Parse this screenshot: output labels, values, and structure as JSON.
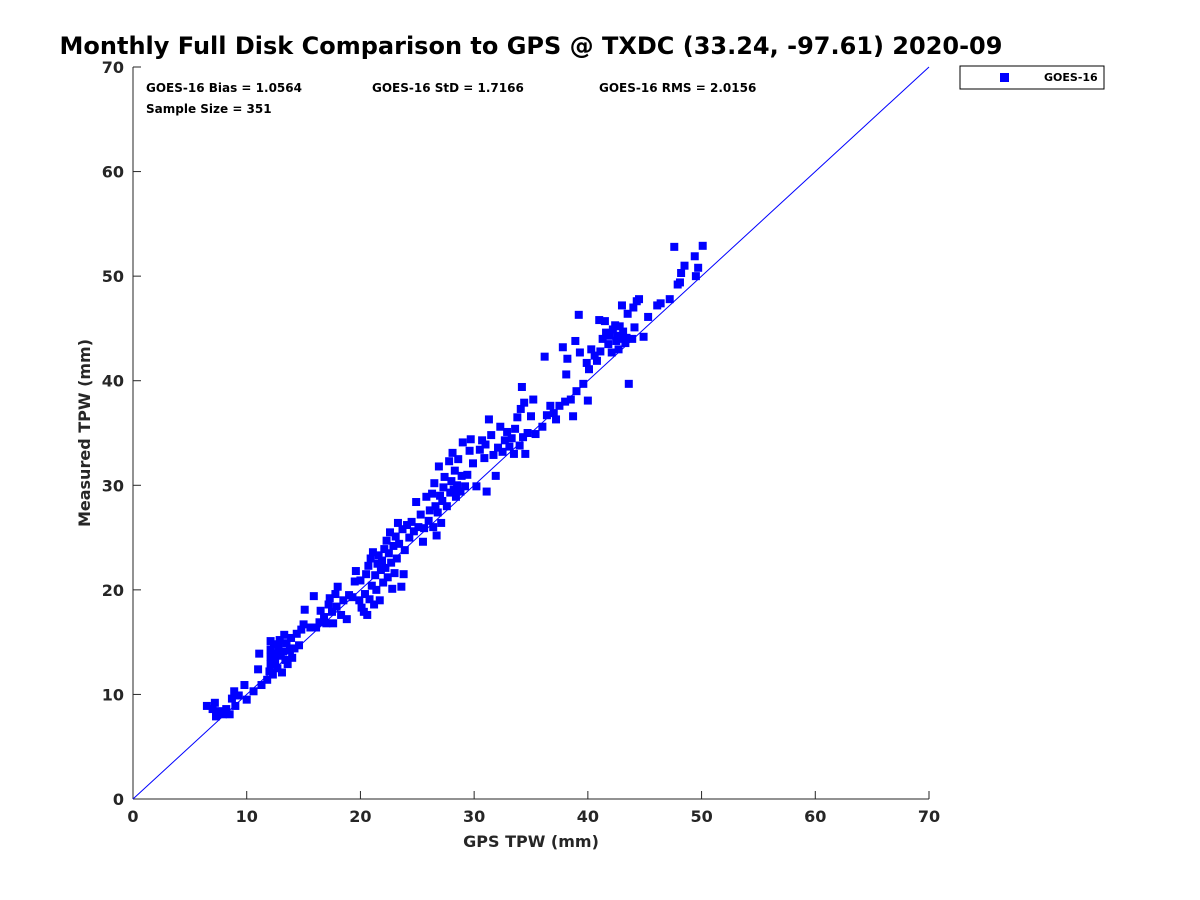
{
  "chart_data": {
    "type": "scatter",
    "title": "Monthly Full Disk Comparison to GPS @ TXDC (33.24, -97.61) 2020-09",
    "xlabel": "GPS TPW (mm)",
    "ylabel": "Measured TPW (mm)",
    "xlim": [
      0,
      70
    ],
    "ylim": [
      0,
      70
    ],
    "x_ticks": [
      "0",
      "10",
      "20",
      "30",
      "40",
      "50",
      "60",
      "70"
    ],
    "y_ticks": [
      "0",
      "10",
      "20",
      "30",
      "40",
      "50",
      "60",
      "70"
    ],
    "grid": false,
    "legend_placement": "outside-top-right",
    "reference_line": {
      "x": [
        0,
        70
      ],
      "y": [
        0,
        70
      ]
    },
    "stats": {
      "bias": "GOES-16 Bias = 1.0564",
      "std": "GOES-16 StD = 1.7166",
      "rms": "GOES-16 RMS = 2.0156",
      "sample": "Sample Size = 351"
    },
    "series": [
      {
        "name": "GOES-16",
        "color": "#0000ff",
        "marker": "square",
        "points": [
          [
            6.5,
            8.9
          ],
          [
            7.0,
            8.6
          ],
          [
            7.2,
            9.2
          ],
          [
            7.3,
            7.9
          ],
          [
            7.6,
            8.4
          ],
          [
            7.9,
            8.1
          ],
          [
            8.2,
            8.6
          ],
          [
            8.5,
            8.1
          ],
          [
            8.7,
            9.6
          ],
          [
            8.9,
            10.3
          ],
          [
            9.0,
            8.9
          ],
          [
            9.3,
            9.9
          ],
          [
            9.8,
            10.9
          ],
          [
            10.0,
            9.5
          ],
          [
            10.6,
            10.3
          ],
          [
            11.0,
            12.4
          ],
          [
            11.1,
            13.9
          ],
          [
            11.3,
            10.9
          ],
          [
            11.8,
            11.4
          ],
          [
            12.0,
            12.2
          ],
          [
            12.1,
            12.9
          ],
          [
            12.1,
            13.6
          ],
          [
            12.1,
            14.3
          ],
          [
            12.1,
            15.1
          ],
          [
            12.3,
            11.9
          ],
          [
            12.4,
            14.8
          ],
          [
            12.5,
            13.2
          ],
          [
            12.6,
            13.9
          ],
          [
            12.7,
            12.5
          ],
          [
            12.8,
            14.6
          ],
          [
            12.9,
            15.2
          ],
          [
            13.0,
            13.7
          ],
          [
            13.1,
            12.1
          ],
          [
            13.2,
            14.1
          ],
          [
            13.3,
            15.7
          ],
          [
            13.4,
            13.3
          ],
          [
            13.5,
            14.9
          ],
          [
            13.6,
            12.9
          ],
          [
            13.8,
            14.2
          ],
          [
            13.9,
            15.4
          ],
          [
            14.0,
            13.5
          ],
          [
            14.2,
            14.4
          ],
          [
            14.4,
            15.8
          ],
          [
            14.6,
            14.7
          ],
          [
            14.8,
            16.2
          ],
          [
            15.0,
            16.7
          ],
          [
            15.1,
            18.1
          ],
          [
            15.6,
            16.4
          ],
          [
            15.9,
            19.4
          ],
          [
            16.1,
            16.4
          ],
          [
            16.4,
            16.9
          ],
          [
            16.5,
            18.0
          ],
          [
            16.8,
            17.4
          ],
          [
            17.0,
            16.8
          ],
          [
            17.2,
            18.6
          ],
          [
            17.3,
            19.2
          ],
          [
            17.5,
            17.9
          ],
          [
            17.6,
            16.8
          ],
          [
            17.8,
            19.6
          ],
          [
            17.9,
            18.4
          ],
          [
            18.0,
            20.3
          ],
          [
            18.3,
            17.6
          ],
          [
            18.5,
            19.0
          ],
          [
            18.8,
            17.2
          ],
          [
            19.0,
            19.5
          ],
          [
            19.3,
            19.3
          ],
          [
            19.5,
            20.8
          ],
          [
            19.6,
            21.8
          ],
          [
            19.9,
            19.0
          ],
          [
            20.0,
            20.9
          ],
          [
            20.1,
            18.3
          ],
          [
            20.3,
            17.9
          ],
          [
            20.4,
            19.6
          ],
          [
            20.5,
            21.5
          ],
          [
            20.6,
            17.6
          ],
          [
            20.7,
            22.3
          ],
          [
            20.8,
            19.1
          ],
          [
            20.9,
            23.0
          ],
          [
            21.0,
            20.4
          ],
          [
            21.1,
            23.6
          ],
          [
            21.2,
            18.6
          ],
          [
            21.3,
            21.4
          ],
          [
            21.4,
            20.0
          ],
          [
            21.5,
            22.5
          ],
          [
            21.6,
            23.3
          ],
          [
            21.7,
            19.0
          ],
          [
            21.8,
            21.9
          ],
          [
            21.9,
            22.8
          ],
          [
            22.0,
            20.7
          ],
          [
            22.1,
            23.9
          ],
          [
            22.2,
            22.1
          ],
          [
            22.3,
            24.7
          ],
          [
            22.4,
            21.2
          ],
          [
            22.5,
            23.5
          ],
          [
            22.6,
            25.5
          ],
          [
            22.7,
            22.6
          ],
          [
            22.8,
            20.1
          ],
          [
            22.9,
            24.2
          ],
          [
            23.0,
            21.6
          ],
          [
            23.1,
            25.1
          ],
          [
            23.2,
            23.0
          ],
          [
            23.3,
            26.4
          ],
          [
            23.4,
            24.4
          ],
          [
            23.6,
            20.3
          ],
          [
            23.7,
            25.8
          ],
          [
            23.8,
            21.5
          ],
          [
            23.9,
            23.8
          ],
          [
            24.1,
            26.2
          ],
          [
            24.3,
            25.0
          ],
          [
            24.5,
            26.5
          ],
          [
            24.7,
            25.6
          ],
          [
            24.9,
            28.4
          ],
          [
            25.1,
            26.0
          ],
          [
            25.3,
            27.2
          ],
          [
            25.5,
            24.6
          ],
          [
            25.6,
            25.9
          ],
          [
            25.8,
            28.9
          ],
          [
            26.0,
            26.6
          ],
          [
            26.1,
            27.6
          ],
          [
            26.3,
            29.2
          ],
          [
            26.4,
            26.0
          ],
          [
            26.5,
            30.2
          ],
          [
            26.6,
            28.0
          ],
          [
            26.7,
            25.2
          ],
          [
            26.8,
            27.4
          ],
          [
            26.9,
            31.8
          ],
          [
            27.0,
            29.0
          ],
          [
            27.1,
            26.4
          ],
          [
            27.2,
            28.5
          ],
          [
            27.3,
            29.8
          ],
          [
            27.4,
            30.8
          ],
          [
            27.6,
            28.0
          ],
          [
            27.8,
            32.3
          ],
          [
            27.9,
            29.3
          ],
          [
            28.0,
            30.4
          ],
          [
            28.1,
            33.1
          ],
          [
            28.2,
            29.6
          ],
          [
            28.3,
            31.4
          ],
          [
            28.4,
            28.9
          ],
          [
            28.5,
            30.0
          ],
          [
            28.6,
            32.5
          ],
          [
            28.8,
            29.4
          ],
          [
            28.9,
            30.9
          ],
          [
            29.0,
            34.1
          ],
          [
            29.2,
            29.9
          ],
          [
            29.4,
            31.0
          ],
          [
            29.6,
            33.3
          ],
          [
            29.7,
            34.4
          ],
          [
            29.9,
            32.1
          ],
          [
            30.2,
            29.9
          ],
          [
            30.5,
            33.4
          ],
          [
            30.7,
            34.3
          ],
          [
            30.9,
            32.6
          ],
          [
            31.0,
            33.9
          ],
          [
            31.1,
            29.4
          ],
          [
            31.3,
            36.3
          ],
          [
            31.5,
            34.8
          ],
          [
            31.7,
            32.9
          ],
          [
            31.9,
            30.9
          ],
          [
            32.1,
            33.6
          ],
          [
            32.3,
            35.6
          ],
          [
            32.5,
            33.2
          ],
          [
            32.7,
            34.3
          ],
          [
            32.9,
            35.1
          ],
          [
            33.1,
            33.7
          ],
          [
            33.3,
            34.5
          ],
          [
            33.5,
            33.0
          ],
          [
            33.6,
            35.4
          ],
          [
            33.8,
            36.5
          ],
          [
            34.0,
            33.8
          ],
          [
            34.1,
            37.3
          ],
          [
            34.2,
            39.4
          ],
          [
            34.3,
            34.6
          ],
          [
            34.4,
            37.9
          ],
          [
            34.5,
            33.0
          ],
          [
            34.7,
            35.0
          ],
          [
            35.0,
            36.6
          ],
          [
            35.2,
            38.2
          ],
          [
            35.4,
            34.9
          ],
          [
            36.0,
            35.6
          ],
          [
            36.2,
            42.3
          ],
          [
            36.4,
            36.7
          ],
          [
            36.7,
            37.6
          ],
          [
            37.0,
            36.9
          ],
          [
            37.2,
            36.3
          ],
          [
            37.5,
            37.6
          ],
          [
            37.8,
            43.2
          ],
          [
            38.0,
            38.0
          ],
          [
            38.1,
            40.6
          ],
          [
            38.2,
            42.1
          ],
          [
            38.5,
            38.2
          ],
          [
            38.7,
            36.6
          ],
          [
            38.9,
            43.8
          ],
          [
            39.0,
            39.0
          ],
          [
            39.2,
            46.3
          ],
          [
            39.3,
            42.7
          ],
          [
            39.6,
            39.7
          ],
          [
            39.9,
            41.7
          ],
          [
            40.0,
            38.1
          ],
          [
            40.1,
            41.1
          ],
          [
            40.3,
            43.0
          ],
          [
            40.6,
            42.4
          ],
          [
            40.8,
            41.9
          ],
          [
            41.0,
            45.8
          ],
          [
            41.1,
            42.8
          ],
          [
            41.3,
            44.0
          ],
          [
            41.5,
            45.7
          ],
          [
            41.6,
            44.6
          ],
          [
            41.8,
            43.5
          ],
          [
            41.9,
            44.3
          ],
          [
            42.1,
            42.7
          ],
          [
            42.2,
            44.9
          ],
          [
            42.4,
            45.3
          ],
          [
            42.5,
            43.8
          ],
          [
            42.6,
            44.3
          ],
          [
            42.7,
            43.0
          ],
          [
            42.8,
            45.2
          ],
          [
            42.9,
            44.0
          ],
          [
            43.0,
            47.2
          ],
          [
            43.1,
            44.7
          ],
          [
            43.3,
            43.6
          ],
          [
            43.4,
            44.1
          ],
          [
            43.5,
            46.4
          ],
          [
            43.6,
            39.7
          ],
          [
            43.9,
            44.0
          ],
          [
            44.0,
            47.0
          ],
          [
            44.1,
            45.1
          ],
          [
            44.3,
            47.6
          ],
          [
            44.5,
            47.8
          ],
          [
            44.9,
            44.2
          ],
          [
            45.3,
            46.1
          ],
          [
            46.1,
            47.2
          ],
          [
            46.4,
            47.4
          ],
          [
            47.2,
            47.8
          ],
          [
            47.6,
            52.8
          ],
          [
            47.9,
            49.2
          ],
          [
            48.1,
            49.4
          ],
          [
            48.2,
            50.3
          ],
          [
            48.5,
            51.0
          ],
          [
            49.4,
            51.9
          ],
          [
            49.5,
            50.0
          ],
          [
            49.7,
            50.8
          ],
          [
            50.1,
            52.9
          ]
        ]
      }
    ]
  }
}
